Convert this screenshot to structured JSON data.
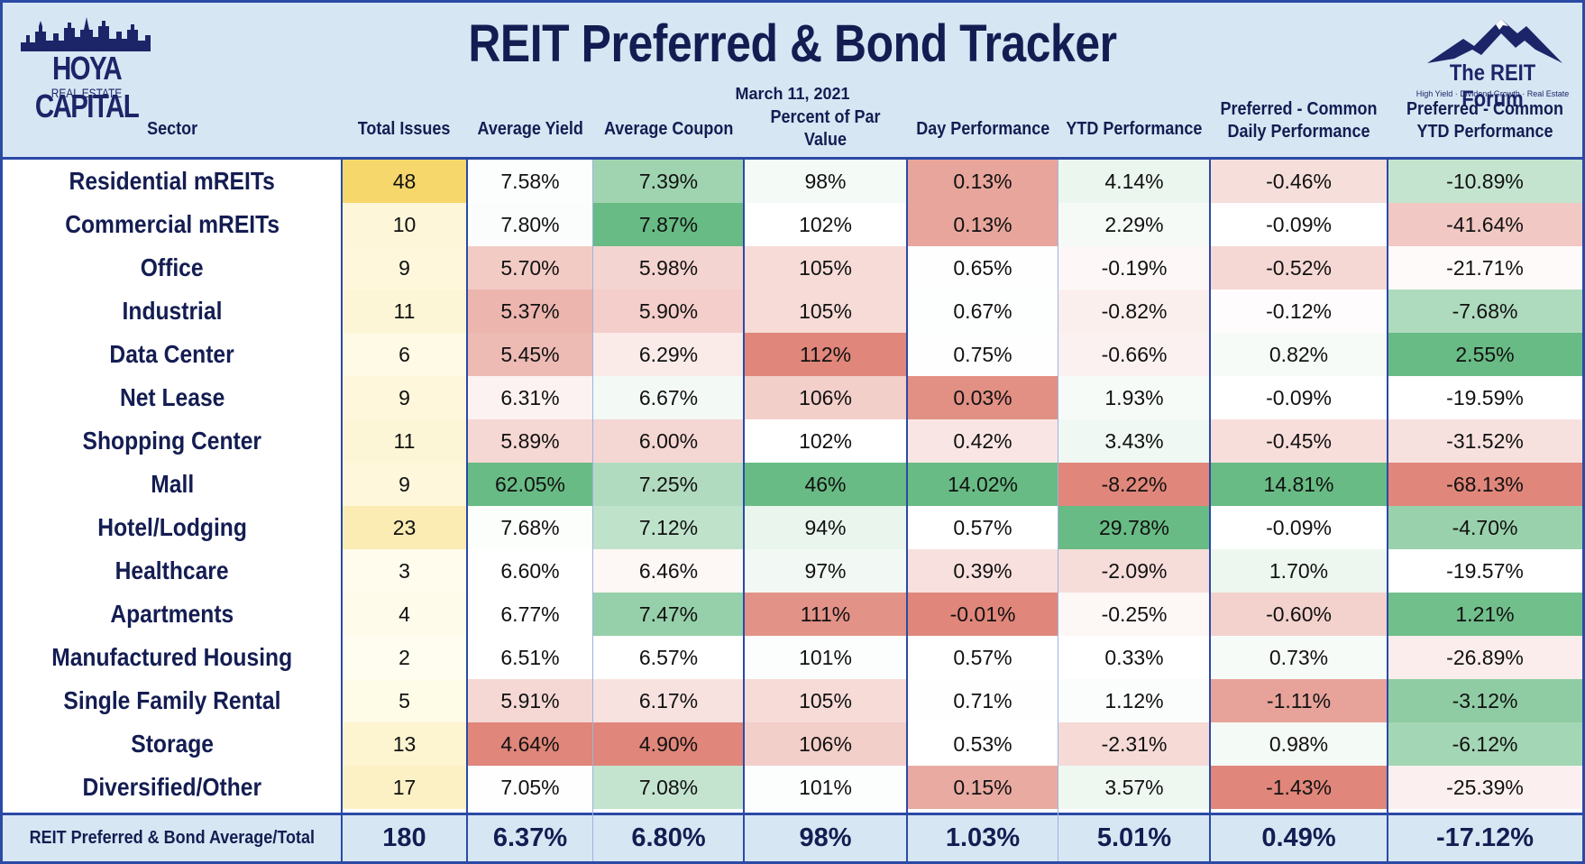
{
  "title": "REIT Preferred & Bond Tracker",
  "date": "March 11, 2021",
  "logo_left": {
    "line1": "HOYA CAPITAL",
    "line2": "REAL ESTATE"
  },
  "logo_right": {
    "line1": "The REIT Forum",
    "tagline": "High Yield · Dividend Growth · Real Estate"
  },
  "columns": [
    "Sector",
    "Total Issues",
    "Average Yield",
    "Average Coupon",
    "Percent of Par Value",
    "Day Performance",
    "YTD Performance",
    "Preferred - Common Daily Performance",
    "Preferred - Common YTD Performance"
  ],
  "colors": {
    "border": "#2b4aa6",
    "header_bg": "#d7e6f3",
    "heading_text": "#141d52",
    "scale_low": "#e0867a",
    "scale_mid": "#ffffff",
    "scale_high": "#68bb84",
    "issues_scale_high": "#f6d76c"
  },
  "rows": [
    {
      "sector": "Residential mREITs",
      "issues": 48,
      "yield": "7.58%",
      "coupon": "7.39%",
      "par": "98%",
      "day": "0.13%",
      "ytd": "4.14%",
      "pc_daily": "-0.46%",
      "pc_ytd": "-10.89%"
    },
    {
      "sector": "Commercial mREITs",
      "issues": 10,
      "yield": "7.80%",
      "coupon": "7.87%",
      "par": "102%",
      "day": "0.13%",
      "ytd": "2.29%",
      "pc_daily": "-0.09%",
      "pc_ytd": "-41.64%"
    },
    {
      "sector": "Office",
      "issues": 9,
      "yield": "5.70%",
      "coupon": "5.98%",
      "par": "105%",
      "day": "0.65%",
      "ytd": "-0.19%",
      "pc_daily": "-0.52%",
      "pc_ytd": "-21.71%"
    },
    {
      "sector": "Industrial",
      "issues": 11,
      "yield": "5.37%",
      "coupon": "5.90%",
      "par": "105%",
      "day": "0.67%",
      "ytd": "-0.82%",
      "pc_daily": "-0.12%",
      "pc_ytd": "-7.68%"
    },
    {
      "sector": "Data Center",
      "issues": 6,
      "yield": "5.45%",
      "coupon": "6.29%",
      "par": "112%",
      "day": "0.75%",
      "ytd": "-0.66%",
      "pc_daily": "0.82%",
      "pc_ytd": "2.55%"
    },
    {
      "sector": "Net Lease",
      "issues": 9,
      "yield": "6.31%",
      "coupon": "6.67%",
      "par": "106%",
      "day": "0.03%",
      "ytd": "1.93%",
      "pc_daily": "-0.09%",
      "pc_ytd": "-19.59%"
    },
    {
      "sector": "Shopping Center",
      "issues": 11,
      "yield": "5.89%",
      "coupon": "6.00%",
      "par": "102%",
      "day": "0.42%",
      "ytd": "3.43%",
      "pc_daily": "-0.45%",
      "pc_ytd": "-31.52%"
    },
    {
      "sector": "Mall",
      "issues": 9,
      "yield": "62.05%",
      "coupon": "7.25%",
      "par": "46%",
      "day": "14.02%",
      "ytd": "-8.22%",
      "pc_daily": "14.81%",
      "pc_ytd": "-68.13%"
    },
    {
      "sector": "Hotel/Lodging",
      "issues": 23,
      "yield": "7.68%",
      "coupon": "7.12%",
      "par": "94%",
      "day": "0.57%",
      "ytd": "29.78%",
      "pc_daily": "-0.09%",
      "pc_ytd": "-4.70%"
    },
    {
      "sector": "Healthcare",
      "issues": 3,
      "yield": "6.60%",
      "coupon": "6.46%",
      "par": "97%",
      "day": "0.39%",
      "ytd": "-2.09%",
      "pc_daily": "1.70%",
      "pc_ytd": "-19.57%"
    },
    {
      "sector": "Apartments",
      "issues": 4,
      "yield": "6.77%",
      "coupon": "7.47%",
      "par": "111%",
      "day": "-0.01%",
      "ytd": "-0.25%",
      "pc_daily": "-0.60%",
      "pc_ytd": "1.21%"
    },
    {
      "sector": "Manufactured Housing",
      "issues": 2,
      "yield": "6.51%",
      "coupon": "6.57%",
      "par": "101%",
      "day": "0.57%",
      "ytd": "0.33%",
      "pc_daily": "0.73%",
      "pc_ytd": "-26.89%"
    },
    {
      "sector": "Single Family Rental",
      "issues": 5,
      "yield": "5.91%",
      "coupon": "6.17%",
      "par": "105%",
      "day": "0.71%",
      "ytd": "1.12%",
      "pc_daily": "-1.11%",
      "pc_ytd": "-3.12%"
    },
    {
      "sector": "Storage",
      "issues": 13,
      "yield": "4.64%",
      "coupon": "4.90%",
      "par": "106%",
      "day": "0.53%",
      "ytd": "-2.31%",
      "pc_daily": "0.98%",
      "pc_ytd": "-6.12%"
    },
    {
      "sector": "Diversified/Other",
      "issues": 17,
      "yield": "7.05%",
      "coupon": "7.08%",
      "par": "101%",
      "day": "0.15%",
      "ytd": "3.57%",
      "pc_daily": "-1.43%",
      "pc_ytd": "-25.39%"
    }
  ],
  "total": {
    "label": "REIT Preferred & Bond Average/Total",
    "issues": 180,
    "yield": "6.37%",
    "coupon": "6.80%",
    "par": "98%",
    "day": "1.03%",
    "ytd": "5.01%",
    "pc_daily": "0.49%",
    "pc_ytd": "-17.12%"
  }
}
